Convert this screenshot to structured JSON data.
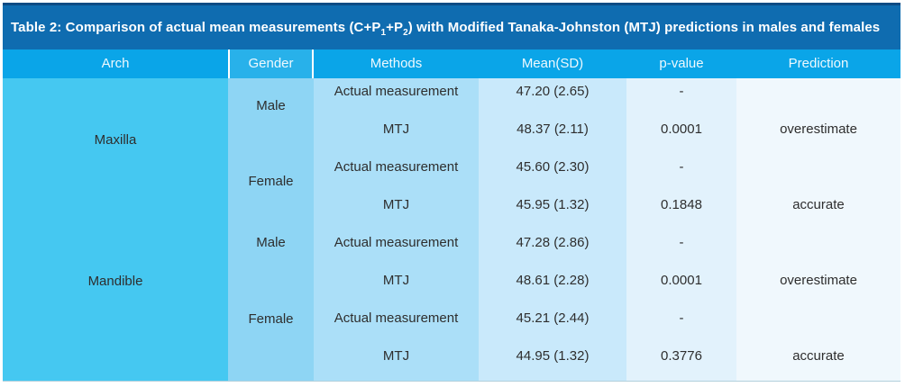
{
  "title": {
    "part1": "Table 2: Comparison of actual mean measurements (C+P",
    "sub1": "1",
    "part2": "+P",
    "sub2": "2",
    "part3": ") with Modified Tanaka-Johnston (MTJ) predictions in males and females"
  },
  "columns": [
    "Arch",
    "Gender",
    "Methods",
    "Mean(SD)",
    "p-value",
    "Prediction"
  ],
  "arch_groups": [
    {
      "label": "Maxilla"
    },
    {
      "label": "Mandible"
    }
  ],
  "gender_groups": [
    {
      "label": "Male"
    },
    {
      "label": "Female"
    },
    {
      "label": "Male"
    },
    {
      "label": "Female"
    }
  ],
  "rows": [
    {
      "method": "Actual measurement",
      "mean_sd": "47.20 (2.65)",
      "p_value": "-",
      "prediction": ""
    },
    {
      "method": "MTJ",
      "mean_sd": "48.37 (2.11)",
      "p_value": "0.0001",
      "prediction": "overestimate"
    },
    {
      "method": "Actual measurement",
      "mean_sd": "45.60 (2.30)",
      "p_value": "-",
      "prediction": ""
    },
    {
      "method": "MTJ",
      "mean_sd": "45.95 (1.32)",
      "p_value": "0.1848",
      "prediction": "accurate"
    },
    {
      "method": "Actual measurement",
      "mean_sd": "47.28 (2.86)",
      "p_value": "-",
      "prediction": ""
    },
    {
      "method": "MTJ",
      "mean_sd": "48.61 (2.28)",
      "p_value": "0.0001",
      "prediction": "overestimate"
    },
    {
      "method": "Actual measurement",
      "mean_sd": "45.21 (2.44)",
      "p_value": "-",
      "prediction": ""
    },
    {
      "method": "MTJ",
      "mean_sd": "44.95 (1.32)",
      "p_value": "0.3776",
      "prediction": "accurate"
    }
  ],
  "colors": {
    "title_bar": "#0f6cb0",
    "border_top": "#0d4b84",
    "header": "#0aa5e8",
    "header_gender": "#28b1ea",
    "col_arch": "#45c8f1",
    "col_gender": "#8ed5f4",
    "col_methods": "#abdff8",
    "col_mean": "#c9e9fb",
    "col_pvalue": "#e2f2fc",
    "col_prediction": "#f0f8fd"
  },
  "chart_data": {
    "type": "table",
    "title": "Table 2: Comparison of actual mean measurements (C+P1+P2) with Modified Tanaka-Johnston (MTJ) predictions in males and females",
    "columns": [
      "Arch",
      "Gender",
      "Methods",
      "Mean(SD)",
      "p-value",
      "Prediction"
    ],
    "rows": [
      [
        "Maxilla",
        "Male",
        "Actual measurement",
        "47.20 (2.65)",
        "-",
        ""
      ],
      [
        "Maxilla",
        "Male",
        "MTJ",
        "48.37 (2.11)",
        "0.0001",
        "overestimate"
      ],
      [
        "Maxilla",
        "Female",
        "Actual measurement",
        "45.60 (2.30)",
        "-",
        ""
      ],
      [
        "Maxilla",
        "Female",
        "MTJ",
        "45.95 (1.32)",
        "0.1848",
        "accurate"
      ],
      [
        "Mandible",
        "Male",
        "Actual measurement",
        "47.28 (2.86)",
        "-",
        ""
      ],
      [
        "Mandible",
        "Male",
        "MTJ",
        "48.61 (2.28)",
        "0.0001",
        "overestimate"
      ],
      [
        "Mandible",
        "Female",
        "Actual measurement",
        "45.21 (2.44)",
        "-",
        ""
      ],
      [
        "Mandible",
        "Female",
        "MTJ",
        "44.95 (1.32)",
        "0.3776",
        "accurate"
      ]
    ]
  }
}
